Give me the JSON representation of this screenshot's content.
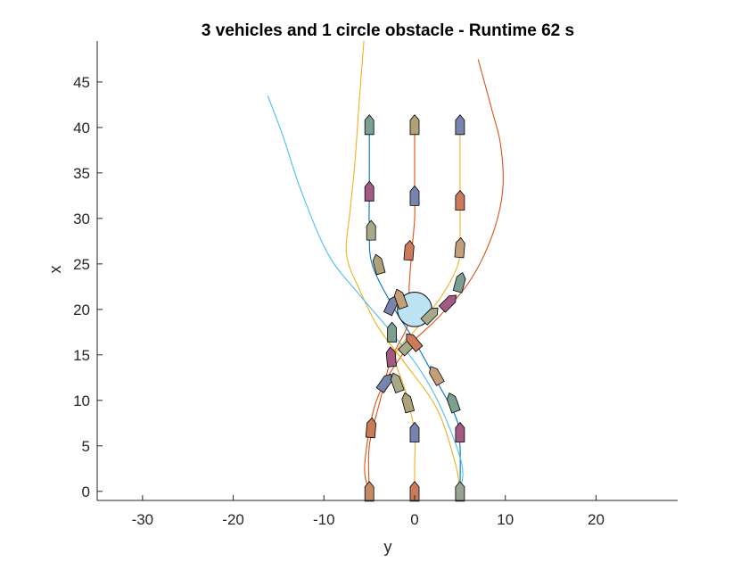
{
  "chart_data": {
    "type": "line",
    "title": "3 vehicles and 1 circle obstacle - Runtime 62 s",
    "xlabel": "y",
    "ylabel": "x",
    "xlim": [
      -35,
      29
    ],
    "ylim": [
      -1,
      49.5
    ],
    "xticks": [
      -30,
      -20,
      -10,
      0,
      10,
      20
    ],
    "yticks": [
      0,
      5,
      10,
      15,
      20,
      25,
      30,
      35,
      40,
      45
    ],
    "xtick_labels": [
      "-30",
      "-20",
      "-10",
      "0",
      "10",
      "20"
    ],
    "ytick_labels": [
      "0",
      "5",
      "10",
      "15",
      "20",
      "25",
      "30",
      "35",
      "40",
      "45"
    ],
    "grid": false,
    "obstacle": {
      "center": [
        0,
        20
      ],
      "radius": 1.9,
      "fill": "#bde4f5"
    },
    "series": [
      {
        "color": "#0072bd",
        "points": [
          [
            5,
            0
          ],
          [
            5,
            5
          ],
          [
            4.6,
            8
          ],
          [
            2.5,
            12
          ],
          [
            0,
            16.5
          ],
          [
            -2.5,
            20.5
          ],
          [
            -4.7,
            25
          ],
          [
            -5,
            29
          ],
          [
            -5,
            33
          ],
          [
            -5,
            40.5
          ]
        ]
      },
      {
        "color": "#d95319",
        "points": [
          [
            -5,
            0
          ],
          [
            -5,
            5
          ],
          [
            -3.8,
            10
          ],
          [
            -2.6,
            14.5
          ],
          [
            -0.7,
            18.5
          ],
          [
            -0.6,
            22.5
          ],
          [
            -0.3,
            26.5
          ],
          [
            0,
            30
          ],
          [
            0,
            33
          ],
          [
            0,
            40.5
          ]
        ]
      },
      {
        "color": "#edb120",
        "points": [
          [
            0,
            0
          ],
          [
            0,
            3
          ],
          [
            0,
            6.5
          ],
          [
            -1,
            11
          ],
          [
            -2.1,
            15
          ],
          [
            0.3,
            18
          ],
          [
            3,
            21.5
          ],
          [
            4.8,
            25
          ],
          [
            5,
            28
          ],
          [
            5,
            32
          ],
          [
            5,
            40.5
          ]
        ]
      },
      {
        "color": "#d95319",
        "points": [
          [
            -5,
            0
          ],
          [
            -5.5,
            3
          ],
          [
            -4.2,
            10
          ],
          [
            -1,
            15.5
          ],
          [
            2.5,
            19
          ],
          [
            6,
            23
          ],
          [
            8.5,
            28
          ],
          [
            9.7,
            33
          ],
          [
            9.5,
            38
          ],
          [
            8.5,
            42
          ],
          [
            7,
            47.5
          ]
        ]
      },
      {
        "color": "#edb120",
        "points": [
          [
            5,
            0
          ],
          [
            4.5,
            3
          ],
          [
            2.5,
            9
          ],
          [
            -1,
            14
          ],
          [
            -4,
            18
          ],
          [
            -6,
            22
          ],
          [
            -7.5,
            26
          ],
          [
            -7.1,
            31
          ],
          [
            -6.6,
            36
          ],
          [
            -6.1,
            43
          ],
          [
            -5.6,
            49.5
          ]
        ]
      },
      {
        "color": "#4dbeee",
        "points": [
          [
            5,
            0
          ],
          [
            5.2,
            3
          ],
          [
            3,
            9
          ],
          [
            0.5,
            13.5
          ],
          [
            -3,
            18
          ],
          [
            -6,
            21.5
          ],
          [
            -9.5,
            26
          ],
          [
            -12.5,
            33
          ],
          [
            -14.5,
            39
          ],
          [
            -16.2,
            43.5
          ]
        ]
      }
    ],
    "vehicles": [
      {
        "x": 0,
        "y": -5,
        "heading": 0,
        "color": "#c48a66"
      },
      {
        "x": 0,
        "y": 0,
        "heading": 0,
        "color": "#cc7a5c"
      },
      {
        "x": 0,
        "y": 5,
        "heading": 0,
        "color": "#99a390"
      },
      {
        "x": 7,
        "y": -4.8,
        "heading": 5,
        "color": "#c77c56"
      },
      {
        "x": 6.5,
        "y": 0,
        "heading": 0,
        "color": "#7884ad"
      },
      {
        "x": 6.5,
        "y": 5,
        "heading": 0,
        "color": "#a35a80"
      },
      {
        "x": 12,
        "y": -3.2,
        "heading": 35,
        "color": "#7884ad"
      },
      {
        "x": 12,
        "y": -2,
        "heading": -20,
        "color": "#a8a88a"
      },
      {
        "x": 9.8,
        "y": -0.8,
        "heading": -15,
        "color": "#b0a278"
      },
      {
        "x": 12.8,
        "y": 2.3,
        "heading": -30,
        "color": "#c4a07a"
      },
      {
        "x": 9.8,
        "y": 4.2,
        "heading": -20,
        "color": "#7b9f90"
      },
      {
        "x": 14.8,
        "y": -2.6,
        "heading": -5,
        "color": "#a35a80"
      },
      {
        "x": 17.5,
        "y": -2.5,
        "heading": 0,
        "color": "#7b9f90"
      },
      {
        "x": 16,
        "y": -0.7,
        "heading": 45,
        "color": "#a8a88a"
      },
      {
        "x": 16.5,
        "y": -0.2,
        "heading": -40,
        "color": "#cc7a5c"
      },
      {
        "x": 20.5,
        "y": -2.5,
        "heading": 25,
        "color": "#7884ad"
      },
      {
        "x": 21.2,
        "y": -1.6,
        "heading": -20,
        "color": "#c4a07a"
      },
      {
        "x": 19.4,
        "y": 1.8,
        "heading": 45,
        "color": "#a8a88a"
      },
      {
        "x": 20.8,
        "y": 3.8,
        "heading": 45,
        "color": "#a35a80"
      },
      {
        "x": 23,
        "y": 5,
        "heading": 15,
        "color": "#7b9f90"
      },
      {
        "x": 25,
        "y": -4,
        "heading": -15,
        "color": "#b0a278"
      },
      {
        "x": 26.5,
        "y": -0.6,
        "heading": 5,
        "color": "#cc7a5c"
      },
      {
        "x": 26.8,
        "y": 5,
        "heading": 5,
        "color": "#c4a07a"
      },
      {
        "x": 28.7,
        "y": -4.8,
        "heading": 0,
        "color": "#a8a88a"
      },
      {
        "x": 32.5,
        "y": 0,
        "heading": 0,
        "color": "#7884ad"
      },
      {
        "x": 32,
        "y": 5,
        "heading": 0,
        "color": "#cc7a5c"
      },
      {
        "x": 33,
        "y": -5,
        "heading": 0,
        "color": "#a35a80"
      },
      {
        "x": 40.3,
        "y": -5,
        "heading": 0,
        "color": "#7b9f90"
      },
      {
        "x": 40.3,
        "y": 0,
        "heading": 0,
        "color": "#b0a278"
      },
      {
        "x": 40.3,
        "y": 5,
        "heading": 0,
        "color": "#7884ad"
      }
    ]
  }
}
